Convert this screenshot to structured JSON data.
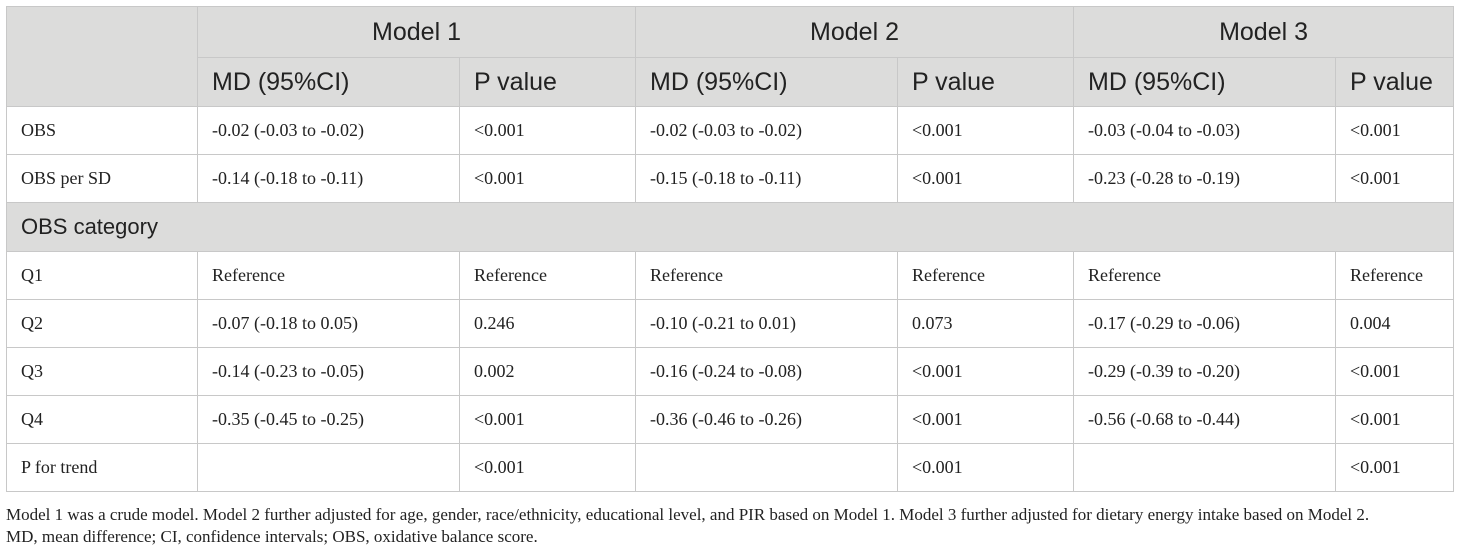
{
  "header": {
    "models": [
      "Model 1",
      "Model 2",
      "Model 3"
    ],
    "md_label": "MD (95%CI)",
    "p_label": "P value"
  },
  "rows_top": [
    {
      "label": "OBS",
      "cells": [
        "-0.02 (-0.03 to -0.02)",
        "<0.001",
        "-0.02 (-0.03 to -0.02)",
        "<0.001",
        "-0.03 (-0.04 to -0.03)",
        "<0.001"
      ]
    },
    {
      "label": "OBS per SD",
      "cells": [
        "-0.14 (-0.18 to -0.11)",
        "<0.001",
        "-0.15 (-0.18 to -0.11)",
        "<0.001",
        "-0.23 (-0.28 to -0.19)",
        "<0.001"
      ]
    }
  ],
  "section_label": "OBS category",
  "rows_cat": [
    {
      "label": "Q1",
      "cells": [
        "Reference",
        "Reference",
        "Reference",
        "Reference",
        "Reference",
        "Reference"
      ]
    },
    {
      "label": "Q2",
      "cells": [
        "-0.07 (-0.18 to 0.05)",
        "0.246",
        "-0.10 (-0.21 to 0.01)",
        "0.073",
        "-0.17 (-0.29 to -0.06)",
        "0.004"
      ]
    },
    {
      "label": "Q3",
      "cells": [
        "-0.14 (-0.23 to -0.05)",
        "0.002",
        "-0.16 (-0.24 to -0.08)",
        "<0.001",
        "-0.29 (-0.39 to -0.20)",
        "<0.001"
      ]
    },
    {
      "label": "Q4",
      "cells": [
        "-0.35 (-0.45 to -0.25)",
        "<0.001",
        "-0.36 (-0.46 to -0.26)",
        "<0.001",
        "-0.56 (-0.68 to -0.44)",
        "<0.001"
      ]
    },
    {
      "label": "P for trend",
      "cells": [
        "",
        "<0.001",
        "",
        "<0.001",
        "",
        "<0.001"
      ]
    }
  ],
  "footnote": {
    "line1": "Model 1 was a crude model. Model 2 further adjusted for age, gender, race/ethnicity, educational level, and PIR based on Model 1. Model 3 further adjusted for dietary energy intake based on Model 2.",
    "line2": "MD, mean difference; CI, confidence intervals; OBS, oxidative balance score."
  }
}
